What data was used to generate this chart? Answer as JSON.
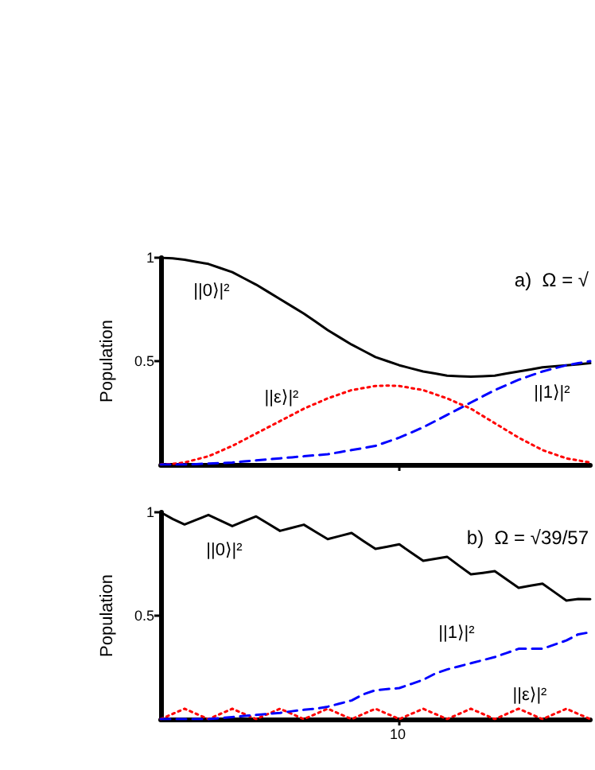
{
  "chart_data": [
    {
      "type": "line",
      "ylabel": "Population",
      "categories": [
        null,
        null,
        null,
        null,
        null,
        null,
        null,
        null,
        null,
        null,
        null,
        null,
        null,
        null,
        null,
        null,
        null,
        null,
        null,
        null,
        null,
        null,
        null,
        null,
        null,
        null,
        null,
        null,
        null,
        null,
        null,
        null,
        null,
        null,
        null,
        null,
        null
      ],
      "ylim": [
        0,
        1
      ],
      "yticks": [
        {
          "value": 0.5,
          "label": "0.5"
        },
        1
      ],
      "marker": "none",
      "series": [
        {
          "color": "#000000",
          "line_style": "solid",
          "values": [
            1,
            0.997,
            0.99,
            0.98,
            0.97,
            0.95,
            0.93,
            0.9,
            0.87,
            0.835,
            0.8,
            0.765,
            0.73,
            0.69,
            0.65,
            0.615,
            0.58,
            0.55,
            0.52,
            0.5,
            0.48,
            0.465,
            0.45,
            0.44,
            0.43,
            0.427,
            0.425,
            0.427,
            0.43,
            0.44,
            0.45,
            0.46,
            0.47,
            0.475,
            0.48,
            0.485,
            0.49
          ]
        },
        {
          "color": "#ff0000",
          "line_style": "dotted",
          "values": [
            0,
            0.003,
            0.01,
            0.025,
            0.04,
            0.065,
            0.09,
            0.12,
            0.15,
            0.18,
            0.21,
            0.24,
            0.27,
            0.295,
            0.32,
            0.34,
            0.36,
            0.37,
            0.38,
            0.382,
            0.38,
            0.37,
            0.36,
            0.34,
            0.32,
            0.295,
            0.27,
            0.235,
            0.2,
            0.165,
            0.13,
            0.1,
            0.07,
            0.05,
            0.03,
            0.02,
            0.01
          ]
        },
        {
          "color": "#0000ff",
          "line_style": "dashed",
          "values": [
            0,
            0,
            0,
            0.002,
            0.005,
            0.007,
            0.01,
            0.015,
            0.02,
            0.025,
            0.03,
            0.035,
            0.04,
            0.045,
            0.05,
            0.06,
            0.07,
            0.08,
            0.09,
            0.11,
            0.13,
            0.155,
            0.18,
            0.21,
            0.24,
            0.27,
            0.3,
            0.33,
            0.36,
            0.385,
            0.41,
            0.43,
            0.45,
            0.465,
            0.48,
            0.49,
            0.5
          ]
        }
      ],
      "annotations": [
        "a)  Ω = √",
        "||0⟩|²",
        "||ε⟩|²",
        "||1⟩|²"
      ]
    },
    {
      "type": "line",
      "ylabel": "Population",
      "categories": [
        null,
        null,
        null,
        null,
        null,
        null,
        null,
        null,
        null,
        null,
        null,
        null,
        null,
        null,
        null,
        null,
        null,
        null,
        null,
        null,
        null,
        null,
        null,
        null,
        null,
        null,
        null,
        null,
        null,
        null,
        null,
        null,
        null,
        null,
        null,
        null,
        null
      ],
      "ylim": [
        0,
        1
      ],
      "yticks": [
        {
          "value": 0.5,
          "label": "0.5"
        },
        1
      ],
      "marker": "none",
      "series": [
        {
          "color": "#000000",
          "line_style": "solid",
          "values": [
            1,
            0.968,
            0.941,
            0.964,
            0.987,
            0.96,
            0.933,
            0.957,
            0.98,
            0.945,
            0.91,
            0.925,
            0.94,
            0.905,
            0.87,
            0.885,
            0.9,
            0.861,
            0.823,
            0.834,
            0.845,
            0.805,
            0.765,
            0.775,
            0.785,
            0.742,
            0.7,
            0.707,
            0.715,
            0.675,
            0.635,
            0.645,
            0.655,
            0.614,
            0.573,
            0.581,
            0.58
          ]
        },
        {
          "color": "#ff0000",
          "line_style": "dotted",
          "values": [
            0,
            0.025,
            0.05,
            0.025,
            0,
            0.025,
            0.05,
            0.025,
            0,
            0.025,
            0.05,
            0.025,
            0,
            0.025,
            0.05,
            0.025,
            0,
            0.025,
            0.05,
            0.025,
            0,
            0.025,
            0.05,
            0.025,
            0,
            0.025,
            0.05,
            0.025,
            0,
            0.025,
            0.05,
            0.025,
            0,
            0.025,
            0.05,
            0.025,
            0
          ]
        },
        {
          "color": "#0000ff",
          "line_style": "dashed",
          "values": [
            0,
            0,
            0,
            0,
            0,
            0.005,
            0.01,
            0.015,
            0.02,
            0.025,
            0.03,
            0.038,
            0.045,
            0.05,
            0.06,
            0.075,
            0.09,
            0.12,
            0.14,
            0.145,
            0.15,
            0.17,
            0.19,
            0.22,
            0.24,
            0.255,
            0.27,
            0.285,
            0.3,
            0.32,
            0.34,
            0.34,
            0.34,
            0.36,
            0.38,
            0.41,
            0.42
          ]
        }
      ],
      "annotations": [
        "b)  Ω = √39/57",
        "||0⟩|²",
        "||1⟩|²",
        "||ε⟩|²",
        "10"
      ]
    }
  ]
}
